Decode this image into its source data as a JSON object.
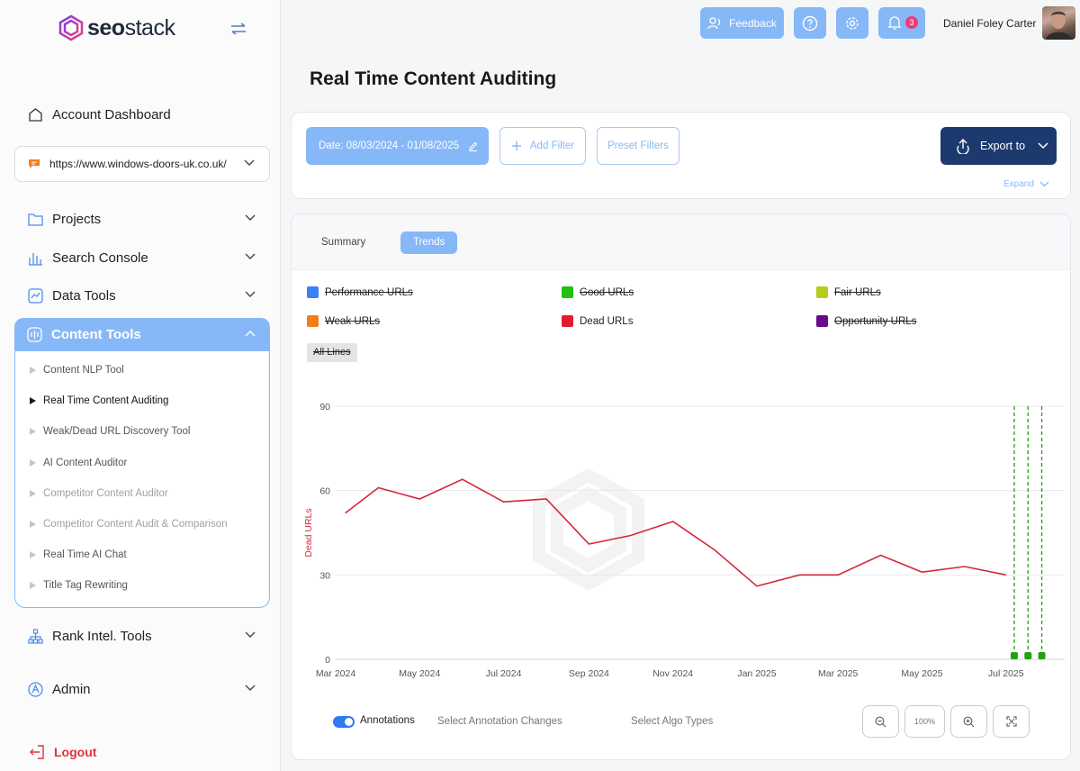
{
  "brand": {
    "name_bold": "seo",
    "name_thin": "stack"
  },
  "sidebar": {
    "account_dashboard": "Account Dashboard",
    "site": "https://www.windows-doors-uk.co.uk/",
    "projects": "Projects",
    "search_console": "Search Console",
    "data_tools": "Data Tools",
    "content_tools": "Content Tools",
    "content_items": [
      {
        "label": "Content NLP Tool",
        "state": "normal"
      },
      {
        "label": "Real Time Content Auditing",
        "state": "active"
      },
      {
        "label": "Weak/Dead URL Discovery Tool",
        "state": "normal"
      },
      {
        "label": "AI Content Auditor",
        "state": "normal"
      },
      {
        "label": "Competitor Content Auditor",
        "state": "muted"
      },
      {
        "label": "Competitor Content Audit & Comparison",
        "state": "muted"
      },
      {
        "label": "Real Time AI Chat",
        "state": "normal"
      },
      {
        "label": "Title Tag Rewriting",
        "state": "normal"
      }
    ],
    "rank_intel": "Rank Intel. Tools",
    "admin": "Admin",
    "logout": "Logout"
  },
  "topbar": {
    "feedback": "Feedback",
    "notifications_count": "3",
    "user_name": "Daniel Foley Carter"
  },
  "page": {
    "title": "Real Time Content Auditing"
  },
  "filters": {
    "date_range": "Date: 08/03/2024 - 01/08/2025",
    "add_filter": "Add Filter",
    "preset_filters": "Preset Filters",
    "export_to": "Export to",
    "expand": "Expand"
  },
  "tabs": {
    "summary": "Summary",
    "trends": "Trends"
  },
  "legend": [
    {
      "label": "Performance URLs",
      "color": "#3b82f6",
      "enabled": false
    },
    {
      "label": "Good URLs",
      "color": "#22c00f",
      "enabled": false
    },
    {
      "label": "Fair URLs",
      "color": "#b5cc18",
      "enabled": false
    },
    {
      "label": "Weak URLs",
      "color": "#f07f1a",
      "enabled": false
    },
    {
      "label": "Dead URLs",
      "color": "#e11d2e",
      "enabled": true
    },
    {
      "label": "Opportunity URLs",
      "color": "#6a0a8c",
      "enabled": false
    }
  ],
  "all_lines": "All Lines",
  "chart_data": {
    "type": "line",
    "ylabel": "Dead URLs",
    "ylim": [
      0,
      90
    ],
    "yticks": [
      "0",
      "30",
      "60",
      "90"
    ],
    "xticks": [
      "Mar 2024",
      "May 2024",
      "Jul 2024",
      "Sep 2024",
      "Nov 2024",
      "Jan 2025",
      "Mar 2025",
      "May 2025",
      "Jul 2025"
    ],
    "grid": true,
    "series": [
      {
        "name": "Dead URLs",
        "color": "#d3283a",
        "x": [
          "2024-03-08",
          "2024-04-01",
          "2024-05-01",
          "2024-06-01",
          "2024-07-01",
          "2024-08-01",
          "2024-09-01",
          "2024-10-01",
          "2024-11-01",
          "2024-12-01",
          "2025-01-01",
          "2025-02-01",
          "2025-03-01",
          "2025-04-01",
          "2025-05-01",
          "2025-06-01",
          "2025-07-01"
        ],
        "values": [
          52,
          61,
          57,
          64,
          56,
          57,
          41,
          44,
          49,
          39,
          26,
          30,
          30,
          37,
          31,
          33,
          30
        ]
      }
    ],
    "annotations": [
      {
        "date": "2025-07-07",
        "color": "#22a010"
      },
      {
        "date": "2025-07-17",
        "color": "#22a010"
      },
      {
        "date": "2025-07-27",
        "color": "#22a010"
      }
    ]
  },
  "annotations_bar": {
    "annotations": "Annotations",
    "select_changes": "Select Annotation Changes",
    "select_algo": "Select Algo Types",
    "zoom_level": "100%"
  }
}
